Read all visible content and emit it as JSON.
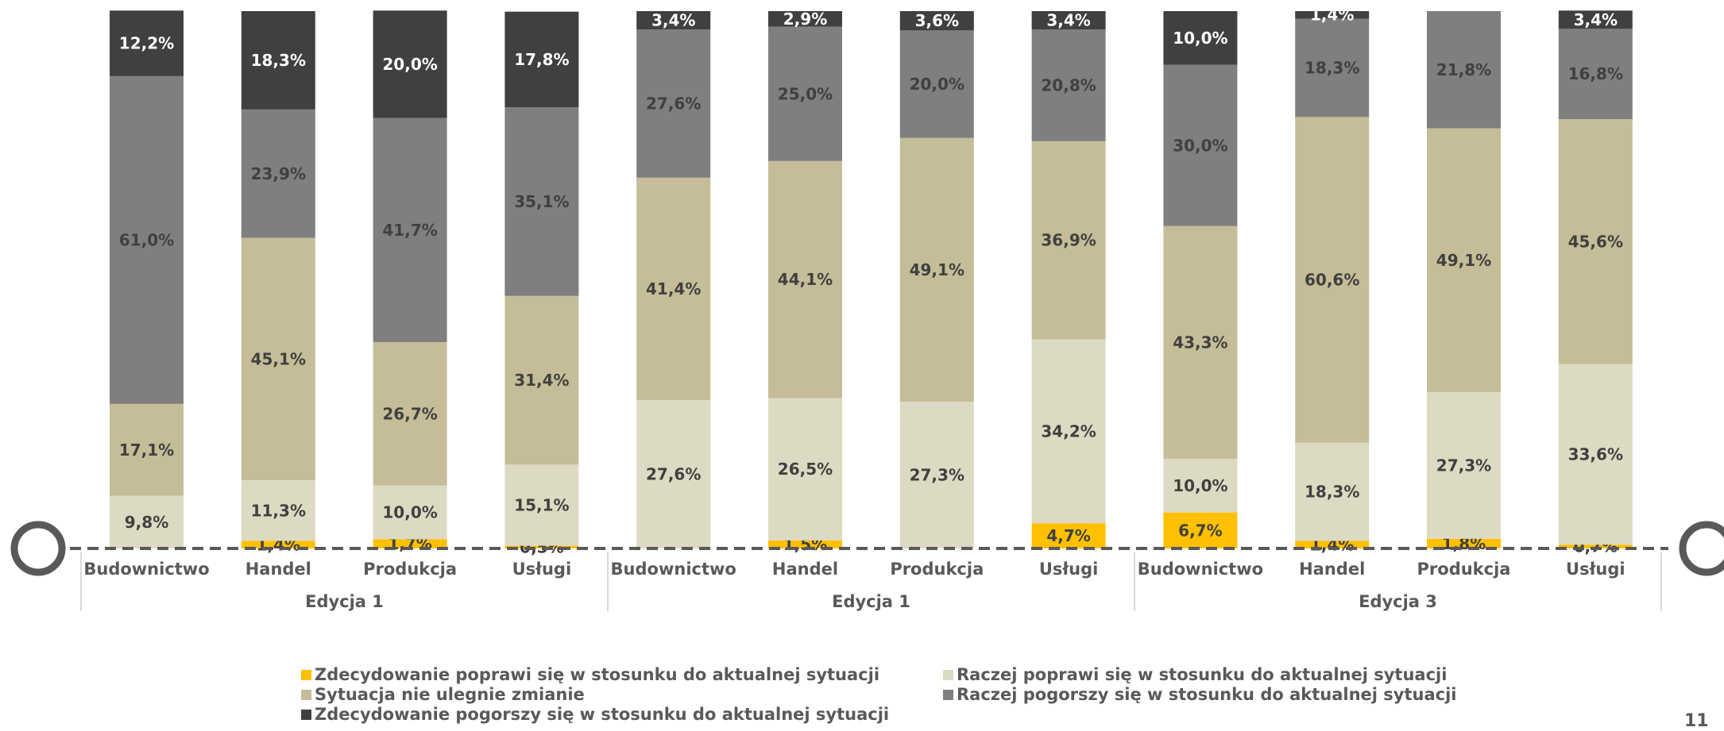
{
  "chart_data": {
    "type": "bar",
    "stacked": true,
    "ylim": [
      0,
      100
    ],
    "groups": [
      {
        "label": "Edycja 1",
        "categories": [
          "Budownictwo",
          "Handel",
          "Produkcja",
          "Usługi"
        ]
      },
      {
        "label": "Edycja 1",
        "categories": [
          "Budownictwo",
          "Handel",
          "Produkcja",
          "Usługi"
        ]
      },
      {
        "label": "Edycja 3",
        "categories": [
          "Budownictwo",
          "Handel",
          "Produkcja",
          "Usługi"
        ]
      }
    ],
    "series": [
      {
        "name": "Zdecydowanie poprawi się w stosunku do aktualnej sytuacji",
        "color": "#FFC000",
        "values": [
          0,
          1.4,
          1.7,
          0.5,
          0,
          1.5,
          0,
          4.7,
          6.7,
          1.4,
          1.8,
          0.7
        ],
        "labels": [
          "",
          "1,4%",
          "1,7%",
          "0,5%",
          "",
          "1,5%",
          "",
          "4,7%",
          "6,7%",
          "1,4%",
          "1,8%",
          "0,7%"
        ]
      },
      {
        "name": "Raczej poprawi się w stosunku do aktualnej sytuacji",
        "color": "#DDDAC3",
        "values": [
          9.8,
          11.3,
          10.0,
          15.1,
          27.6,
          26.5,
          27.3,
          34.2,
          10.0,
          18.3,
          27.3,
          33.6
        ],
        "labels": [
          "9,8%",
          "11,3%",
          "10,0%",
          "15,1%",
          "27,6%",
          "26,5%",
          "27,3%",
          "34,2%",
          "10,0%",
          "18,3%",
          "27,3%",
          "33,6%"
        ]
      },
      {
        "name": "Sytuacja nie ulegnie zmianie",
        "color": "#C4BD97",
        "values": [
          17.1,
          45.1,
          26.7,
          31.4,
          41.4,
          44.1,
          49.1,
          36.9,
          43.3,
          60.6,
          49.1,
          45.6
        ],
        "labels": [
          "17,1%",
          "45,1%",
          "26,7%",
          "31,4%",
          "41,4%",
          "44,1%",
          "49,1%",
          "36,9%",
          "43,3%",
          "60,6%",
          "49,1%",
          "45,6%"
        ]
      },
      {
        "name": "Raczej pogorszy się w stosunku do aktualnej sytuacji",
        "color": "#7F7F7F",
        "values": [
          61.0,
          23.9,
          41.7,
          35.1,
          27.6,
          25.0,
          20.0,
          20.8,
          30.0,
          18.3,
          21.8,
          16.8
        ],
        "labels": [
          "61,0%",
          "23,9%",
          "41,7%",
          "35,1%",
          "27,6%",
          "25,0%",
          "20,0%",
          "20,8%",
          "30,0%",
          "18,3%",
          "21,8%",
          "16,8%"
        ]
      },
      {
        "name": "Zdecydowanie pogorszy się w stosunku do aktualnej sytuacji",
        "color": "#404040",
        "values": [
          12.2,
          18.3,
          20.0,
          17.8,
          3.4,
          2.9,
          3.6,
          3.4,
          10.0,
          1.4,
          0,
          3.4
        ],
        "labels": [
          "12,2%",
          "18,3%",
          "20,0%",
          "17,8%",
          "3,4%",
          "2,9%",
          "3,6%",
          "3,4%",
          "10,0%",
          "1,4%",
          "",
          "3,4%"
        ]
      }
    ],
    "legend_position": "bottom"
  },
  "page": {
    "number": "11"
  }
}
